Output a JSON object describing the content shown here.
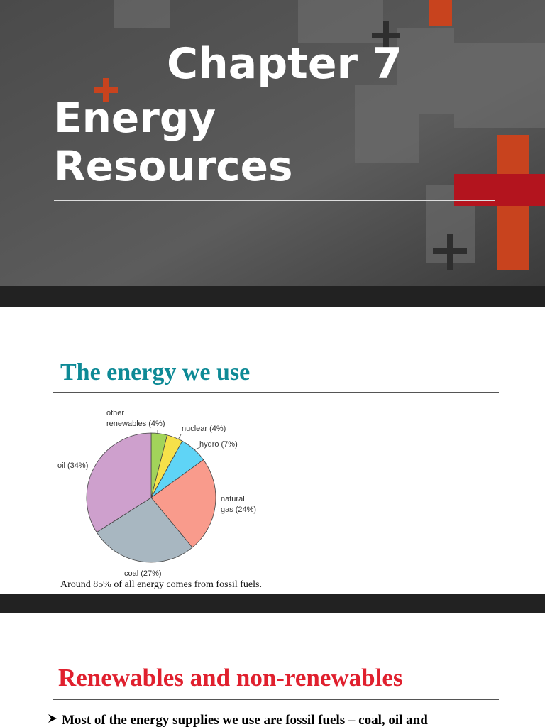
{
  "slides": [
    {
      "title_line1": "Chapter 7",
      "title_line2": "Energy",
      "title_line3": "Resources"
    },
    {
      "title": "The energy we use",
      "caption": "Around 85% of all energy comes from fossil fuels."
    },
    {
      "title": "Renewables and non-renewables",
      "bullet": "Most of the energy supplies we use are fossil fuels – coal, oil and"
    }
  ],
  "chart_data": {
    "type": "pie",
    "categories": [
      "other renewables",
      "nuclear",
      "hydro",
      "natural gas",
      "coal",
      "oil"
    ],
    "values": [
      4,
      4,
      7,
      24,
      27,
      34
    ],
    "value_labels": [
      "(4%)",
      "(4%)",
      "(7%)",
      "(24%)",
      "(27%)",
      "(34%)"
    ],
    "colors": [
      "#a2d35a",
      "#f6e14a",
      "#5fd4f6",
      "#f99b8c",
      "#a8b7c1",
      "#cea0cd"
    ]
  }
}
